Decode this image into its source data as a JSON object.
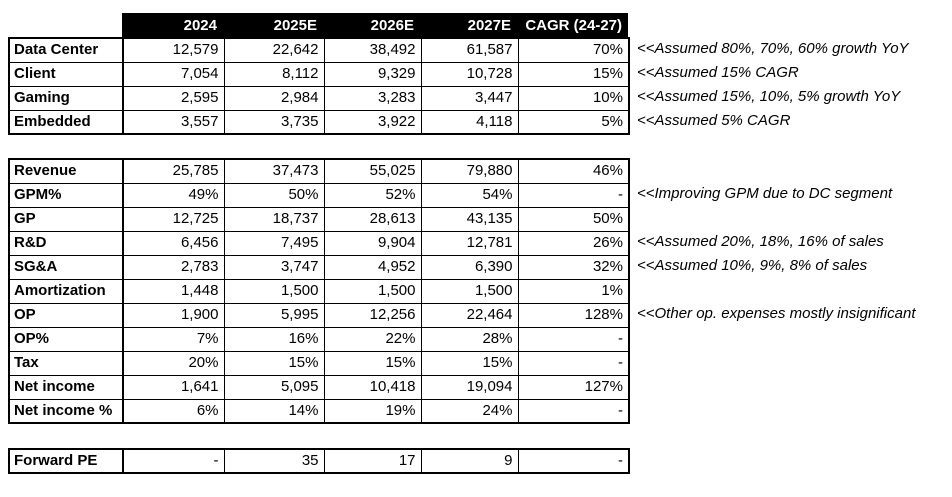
{
  "colors": {
    "header_bg": "#000000",
    "header_text": "#ffffff",
    "border": "#000000",
    "background": "#ffffff"
  },
  "header": {
    "labels": [
      "2024",
      "2025E",
      "2026E",
      "2027E",
      "CAGR (24-27)"
    ]
  },
  "sections": [
    {
      "name": "segments",
      "rows": [
        {
          "label": "Data Center",
          "values": [
            "12,579",
            "22,642",
            "38,492",
            "61,587",
            "70%"
          ],
          "note": "<<Assumed 80%, 70%, 60% growth YoY"
        },
        {
          "label": "Client",
          "values": [
            "7,054",
            "8,112",
            "9,329",
            "10,728",
            "15%"
          ],
          "note": "<<Assumed 15% CAGR"
        },
        {
          "label": "Gaming",
          "values": [
            "2,595",
            "2,984",
            "3,283",
            "3,447",
            "10%"
          ],
          "note": "<<Assumed 15%, 10%, 5% growth YoY"
        },
        {
          "label": "Embedded",
          "values": [
            "3,557",
            "3,735",
            "3,922",
            "4,118",
            "5%"
          ],
          "note": "<<Assumed 5% CAGR"
        }
      ]
    },
    {
      "name": "income",
      "rows": [
        {
          "label": "Revenue",
          "values": [
            "25,785",
            "37,473",
            "55,025",
            "79,880",
            "46%"
          ]
        },
        {
          "label": "GPM%",
          "values": [
            "49%",
            "50%",
            "52%",
            "54%",
            "-"
          ],
          "note": "<<Improving GPM due to DC segment"
        },
        {
          "label": "GP",
          "values": [
            "12,725",
            "18,737",
            "28,613",
            "43,135",
            "50%"
          ]
        },
        {
          "label": "R&D",
          "values": [
            "6,456",
            "7,495",
            "9,904",
            "12,781",
            "26%"
          ],
          "note": "<<Assumed 20%, 18%, 16% of sales"
        },
        {
          "label": "SG&A",
          "values": [
            "2,783",
            "3,747",
            "4,952",
            "6,390",
            "32%"
          ],
          "note": "<<Assumed 10%, 9%, 8% of sales"
        },
        {
          "label": "Amortization",
          "values": [
            "1,448",
            "1,500",
            "1,500",
            "1,500",
            "1%"
          ]
        },
        {
          "label": "OP",
          "values": [
            "1,900",
            "5,995",
            "12,256",
            "22,464",
            "128%"
          ],
          "note": "<<Other op. expenses mostly insignificant"
        },
        {
          "label": "OP%",
          "values": [
            "7%",
            "16%",
            "22%",
            "28%",
            "-"
          ]
        },
        {
          "label": "Tax",
          "values": [
            "20%",
            "15%",
            "15%",
            "15%",
            "-"
          ]
        },
        {
          "label": "Net income",
          "values": [
            "1,641",
            "5,095",
            "10,418",
            "19,094",
            "127%"
          ]
        },
        {
          "label": "Net income %",
          "values": [
            "6%",
            "14%",
            "19%",
            "24%",
            "-"
          ]
        }
      ]
    },
    {
      "name": "valuation",
      "rows": [
        {
          "label": "Forward PE",
          "values": [
            "-",
            "35",
            "17",
            "9",
            "-"
          ]
        }
      ]
    }
  ]
}
